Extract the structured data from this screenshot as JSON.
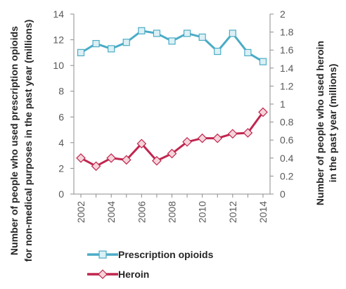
{
  "chart_data": {
    "type": "line",
    "x": [
      2002,
      2003,
      2004,
      2005,
      2006,
      2007,
      2008,
      2009,
      2010,
      2011,
      2012,
      2013,
      2014
    ],
    "x_tick_labels": [
      "2002",
      "2004",
      "2006",
      "2008",
      "2010",
      "2012",
      "2014"
    ],
    "series": [
      {
        "name": "Prescription opioids",
        "axis": "left",
        "color": "#4bacc6",
        "marker": "square",
        "values": [
          11.0,
          11.7,
          11.3,
          11.8,
          12.7,
          12.5,
          11.9,
          12.5,
          12.2,
          11.1,
          12.5,
          11.0,
          10.3
        ]
      },
      {
        "name": "Heroin",
        "axis": "right",
        "color": "#c0264f",
        "marker": "diamond",
        "values": [
          0.4,
          0.31,
          0.4,
          0.38,
          0.56,
          0.37,
          0.45,
          0.58,
          0.62,
          0.62,
          0.67,
          0.68,
          0.91
        ]
      }
    ],
    "y_left": {
      "label_line1": "Number of people who used prescription opioids",
      "label_line2": "for non-medical purposes in the past year (millions)",
      "ylim": [
        0,
        14
      ],
      "ticks": [
        "0",
        "2",
        "4",
        "6",
        "8",
        "10",
        "12",
        "14"
      ]
    },
    "y_right": {
      "label_line1": "Number of people who used heroin",
      "label_line2": "in the past year (millions)",
      "ylim": [
        0,
        2
      ],
      "ticks": [
        "0",
        "0.2",
        "0.4",
        "0.6",
        "0.8",
        "1",
        "1.2",
        "1.4",
        "1.6",
        "1.8",
        "2"
      ]
    },
    "grid": false,
    "legend_position": "bottom"
  }
}
